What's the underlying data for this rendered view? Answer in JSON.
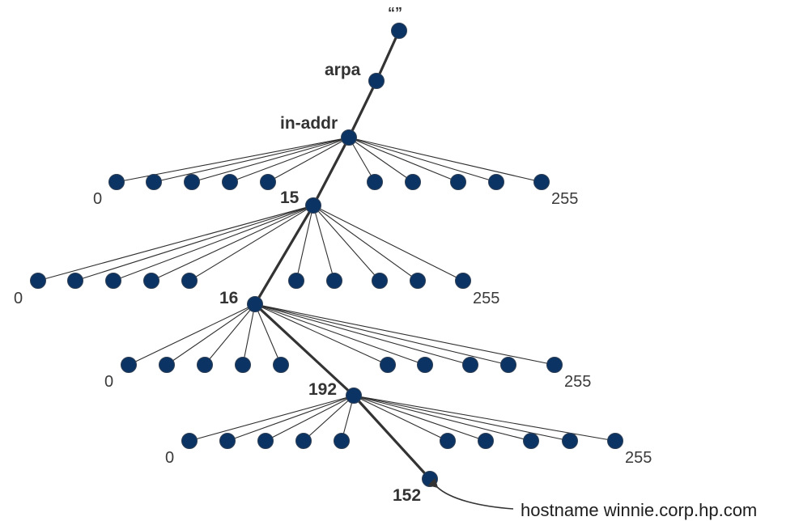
{
  "tree": {
    "root_label": "“”",
    "arpa_label": "arpa",
    "inaddr_label": "in-addr",
    "level1": {
      "path_label": "15",
      "first_label": "0",
      "last_label": "255"
    },
    "level2": {
      "path_label": "16",
      "first_label": "0",
      "last_label": "255"
    },
    "level3": {
      "path_label": "192",
      "first_label": "0",
      "last_label": "255"
    },
    "level4": {
      "path_label": "",
      "first_label": "0",
      "last_label": "255"
    },
    "leaf": {
      "label": "152"
    },
    "annotation": "hostname winnie.corp.hp.com"
  },
  "colors": {
    "node_fill": "#0b3464",
    "edge": "#333333",
    "text": "#333333"
  }
}
